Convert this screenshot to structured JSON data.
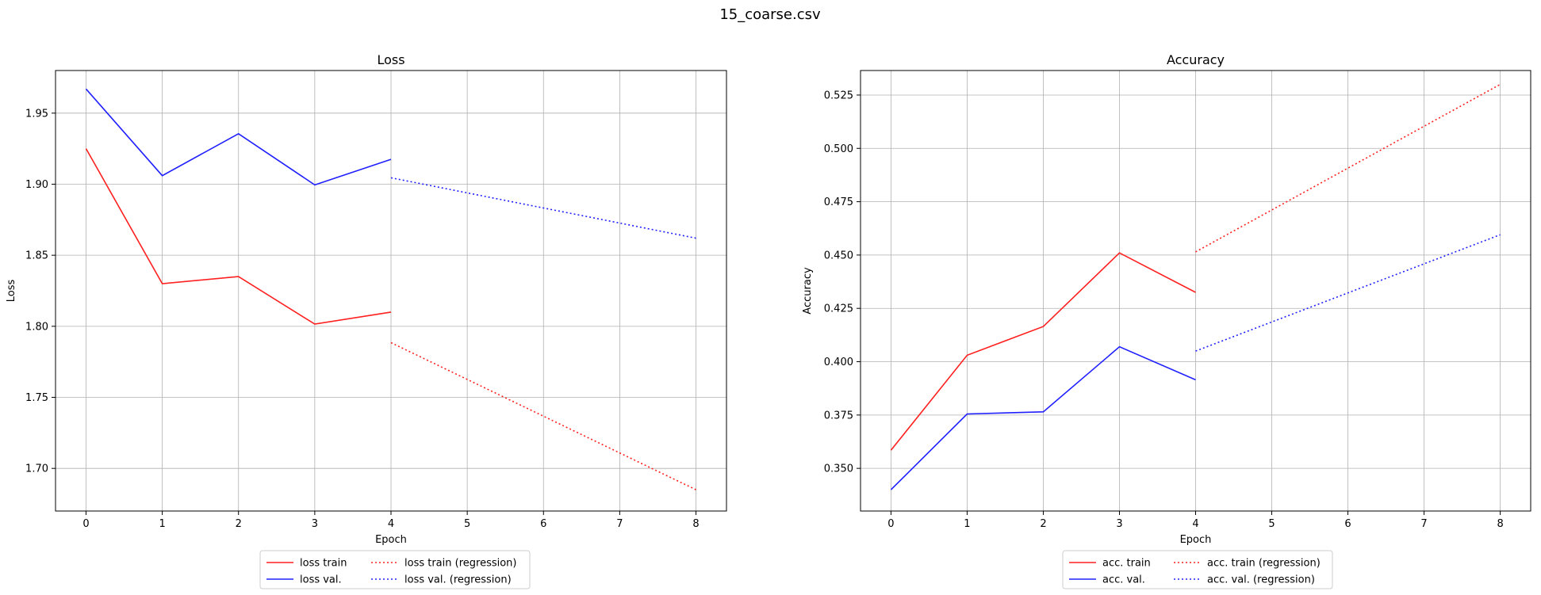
{
  "figure_title": "15_coarse.csv",
  "chart_data": [
    {
      "type": "line",
      "title": "Loss",
      "xlabel": "Epoch",
      "ylabel": "Loss",
      "xlim": [
        -0.4,
        8.4
      ],
      "ylim": [
        1.67,
        1.98
      ],
      "xticks": [
        0,
        1,
        2,
        3,
        4,
        5,
        6,
        7,
        8
      ],
      "yticks": [
        1.7,
        1.75,
        1.8,
        1.85,
        1.9,
        1.95
      ],
      "ytick_labels": [
        "1.70",
        "1.75",
        "1.80",
        "1.85",
        "1.90",
        "1.95"
      ],
      "grid": true,
      "legend_position": "below",
      "series": [
        {
          "name": "loss train",
          "color": "#ff2020",
          "style": "solid",
          "x": [
            0,
            1,
            2,
            3,
            4
          ],
          "y": [
            1.925,
            1.83,
            1.835,
            1.8015,
            1.81
          ]
        },
        {
          "name": "loss val.",
          "color": "#2020ff",
          "style": "solid",
          "x": [
            0,
            1,
            2,
            3,
            4
          ],
          "y": [
            1.967,
            1.906,
            1.9355,
            1.8995,
            1.9175
          ]
        },
        {
          "name": "loss train (regression)",
          "color": "#ff2020",
          "style": "dotted",
          "x": [
            4,
            8
          ],
          "y": [
            1.7885,
            1.685
          ]
        },
        {
          "name": "loss val. (regression)",
          "color": "#2020ff",
          "style": "dotted",
          "x": [
            4,
            8
          ],
          "y": [
            1.9045,
            1.862
          ]
        }
      ]
    },
    {
      "type": "line",
      "title": "Accuracy",
      "xlabel": "Epoch",
      "ylabel": "Accuracy",
      "xlim": [
        -0.4,
        8.4
      ],
      "ylim": [
        0.33,
        0.5365
      ],
      "xticks": [
        0,
        1,
        2,
        3,
        4,
        5,
        6,
        7,
        8
      ],
      "yticks": [
        0.35,
        0.375,
        0.4,
        0.425,
        0.45,
        0.475,
        0.5,
        0.525
      ],
      "ytick_labels": [
        "0.350",
        "0.375",
        "0.400",
        "0.425",
        "0.450",
        "0.475",
        "0.500",
        "0.525"
      ],
      "grid": true,
      "legend_position": "below",
      "series": [
        {
          "name": "acc. train",
          "color": "#ff2020",
          "style": "solid",
          "x": [
            0,
            1,
            2,
            3,
            4
          ],
          "y": [
            0.3585,
            0.403,
            0.4165,
            0.451,
            0.4325
          ]
        },
        {
          "name": "acc. val.",
          "color": "#2020ff",
          "style": "solid",
          "x": [
            0,
            1,
            2,
            3,
            4
          ],
          "y": [
            0.34,
            0.3755,
            0.3765,
            0.407,
            0.3915
          ]
        },
        {
          "name": "acc. train (regression)",
          "color": "#ff2020",
          "style": "dotted",
          "x": [
            4,
            8
          ],
          "y": [
            0.4515,
            0.53
          ]
        },
        {
          "name": "acc. val. (regression)",
          "color": "#2020ff",
          "style": "dotted",
          "x": [
            4,
            8
          ],
          "y": [
            0.405,
            0.4595
          ]
        }
      ]
    }
  ]
}
